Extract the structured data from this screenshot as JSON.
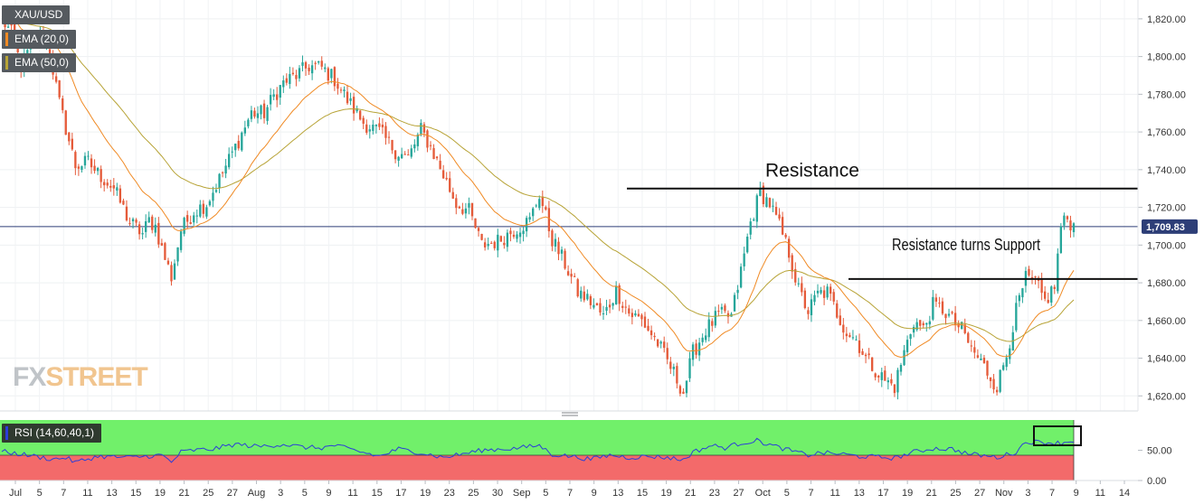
{
  "chart_data": [
    {
      "type": "candlestick",
      "symbol": "XAU/USD",
      "indicators": [
        "EMA (20,0)",
        "EMA (50,0)"
      ],
      "colors": {
        "up": "#26a69a",
        "down": "#e55b3a",
        "ema20": "#f08a24",
        "ema50": "#b7a336",
        "price_line": "#2d3e77",
        "last_price_bg": "#2d3e77"
      },
      "ylim": [
        1612,
        1830
      ],
      "y_ticks": [
        "1,820.00",
        "1,800.00",
        "1,780.00",
        "1,760.00",
        "1,740.00",
        "1,720.00",
        "1,700.00",
        "1,680.00",
        "1,660.00",
        "1,640.00",
        "1,620.00"
      ],
      "x_ticks": [
        "Jul",
        "5",
        "7",
        "11",
        "13",
        "15",
        "19",
        "21",
        "25",
        "27",
        "Aug",
        "3",
        "5",
        "9",
        "11",
        "15",
        "17",
        "19",
        "23",
        "25",
        "30",
        "Sep",
        "5",
        "7",
        "9",
        "13",
        "15",
        "19",
        "21",
        "23",
        "27",
        "Oct",
        "5",
        "7",
        "11",
        "13",
        "17",
        "19",
        "21",
        "25",
        "27",
        "Nov",
        "3",
        "7",
        "9",
        "11",
        "14"
      ],
      "last_price": 1709.83,
      "last_price_label": "1,709.83",
      "price_path": [
        [
          0,
          1820
        ],
        [
          3,
          1812
        ],
        [
          6,
          1795
        ],
        [
          9,
          1805
        ],
        [
          12,
          1810
        ],
        [
          15,
          1802
        ],
        [
          18,
          1775
        ],
        [
          20,
          1762
        ],
        [
          23,
          1742
        ],
        [
          27,
          1744
        ],
        [
          30,
          1738
        ],
        [
          35,
          1730
        ],
        [
          40,
          1712
        ],
        [
          44,
          1706
        ],
        [
          46,
          1713
        ],
        [
          48,
          1710
        ],
        [
          50,
          1698
        ],
        [
          53,
          1683
        ],
        [
          56,
          1708
        ],
        [
          60,
          1718
        ],
        [
          64,
          1722
        ],
        [
          68,
          1735
        ],
        [
          73,
          1752
        ],
        [
          78,
          1770
        ],
        [
          82,
          1770
        ],
        [
          85,
          1779
        ],
        [
          88,
          1786
        ],
        [
          92,
          1790
        ],
        [
          96,
          1795
        ],
        [
          100,
          1794
        ],
        [
          104,
          1788
        ],
        [
          108,
          1777
        ],
        [
          113,
          1765
        ],
        [
          118,
          1760
        ],
        [
          123,
          1750
        ],
        [
          127,
          1746
        ],
        [
          131,
          1761
        ],
        [
          134,
          1752
        ],
        [
          138,
          1737
        ],
        [
          142,
          1722
        ],
        [
          146,
          1718
        ],
        [
          150,
          1700
        ],
        [
          155,
          1702
        ],
        [
          160,
          1708
        ],
        [
          165,
          1713
        ],
        [
          168,
          1727
        ],
        [
          172,
          1703
        ],
        [
          176,
          1690
        ],
        [
          180,
          1675
        ],
        [
          184,
          1670
        ],
        [
          188,
          1662
        ],
        [
          192,
          1676
        ],
        [
          196,
          1664
        ],
        [
          200,
          1660
        ],
        [
          205,
          1648
        ],
        [
          210,
          1632
        ],
        [
          213,
          1622
        ],
        [
          216,
          1643
        ],
        [
          220,
          1655
        ],
        [
          224,
          1663
        ],
        [
          228,
          1662
        ],
        [
          231,
          1686
        ],
        [
          234,
          1712
        ],
        [
          237,
          1728
        ],
        [
          240,
          1722
        ],
        [
          243,
          1710
        ],
        [
          246,
          1696
        ],
        [
          249,
          1676
        ],
        [
          252,
          1665
        ],
        [
          255,
          1674
        ],
        [
          258,
          1675
        ],
        [
          261,
          1664
        ],
        [
          264,
          1654
        ],
        [
          267,
          1650
        ],
        [
          270,
          1640
        ],
        [
          273,
          1634
        ],
        [
          276,
          1628
        ],
        [
          279,
          1625
        ],
        [
          282,
          1643
        ],
        [
          285,
          1660
        ],
        [
          288,
          1655
        ],
        [
          291,
          1668
        ],
        [
          294,
          1666
        ],
        [
          297,
          1660
        ],
        [
          300,
          1655
        ],
        [
          303,
          1645
        ],
        [
          306,
          1638
        ],
        [
          309,
          1630
        ],
        [
          311,
          1625
        ],
        [
          314,
          1642
        ],
        [
          317,
          1665
        ],
        [
          320,
          1682
        ],
        [
          323,
          1680
        ],
        [
          326,
          1670
        ],
        [
          329,
          1678
        ],
        [
          331,
          1710
        ],
        [
          333,
          1714
        ],
        [
          335,
          1710
        ]
      ]
    },
    {
      "type": "line",
      "indicator_label": "RSI (14,60,40,1)",
      "ylim": [
        0,
        100
      ],
      "y_ticks": [
        "50.00",
        "0.00"
      ],
      "zones": {
        "upper": "#71f06a",
        "lower": "#f36a6a"
      },
      "series_color": "#2c3ed8",
      "x": [
        0,
        8,
        16,
        20,
        23,
        30,
        40,
        50,
        53,
        56,
        60,
        66,
        73,
        80,
        88,
        94,
        100,
        104,
        110,
        118,
        124,
        131,
        138,
        144,
        150,
        156,
        160,
        168,
        172,
        178,
        184,
        190,
        196,
        202,
        208,
        213,
        216,
        222,
        226,
        231,
        236,
        240,
        246,
        252,
        256,
        262,
        268,
        273,
        279,
        285,
        291,
        297,
        302,
        307,
        311,
        317,
        320,
        326,
        331,
        335
      ],
      "values": [
        48,
        42,
        35,
        38,
        30,
        40,
        38,
        42,
        30,
        47,
        50,
        52,
        60,
        56,
        60,
        55,
        54,
        58,
        50,
        40,
        52,
        46,
        38,
        44,
        50,
        52,
        53,
        58,
        43,
        40,
        35,
        42,
        38,
        40,
        38,
        34,
        47,
        58,
        54,
        62,
        66,
        59,
        50,
        42,
        46,
        44,
        40,
        39,
        37,
        47,
        53,
        52,
        44,
        41,
        38,
        47,
        64,
        63,
        62,
        66
      ]
    }
  ],
  "annotations": {
    "resistance_label": "Resistance",
    "support_label": "Resistance turns Support",
    "resistance_level": 1730,
    "support_level": 1682
  },
  "watermark": {
    "part1": "FX",
    "part2": "STREET"
  }
}
